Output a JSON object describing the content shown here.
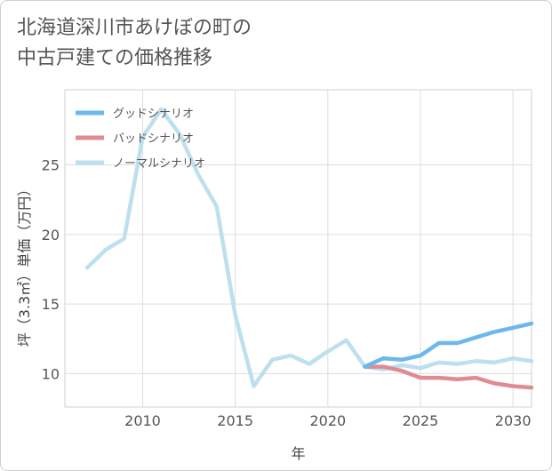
{
  "chart_data": {
    "type": "line",
    "title": "北海道深川市あけぼの町の\n中古戸建ての価格推移",
    "xlabel": "年",
    "ylabel": "坪（3.3㎡）単価（万円）",
    "xlim": [
      2005.8,
      2031
    ],
    "ylim": [
      7.6,
      30.4
    ],
    "x_ticks": [
      2010,
      2015,
      2020,
      2025,
      2030
    ],
    "y_ticks": [
      10,
      15,
      20,
      25
    ],
    "grid": true,
    "legend_position": "top-left",
    "series": [
      {
        "name": "グッドシナリオ",
        "color": "#6cb8ec",
        "x": [
          2022,
          2023,
          2024,
          2025,
          2026,
          2027,
          2028,
          2029,
          2030,
          2031
        ],
        "y": [
          10.5,
          11.1,
          11.0,
          11.3,
          12.2,
          12.2,
          12.6,
          13.0,
          13.3,
          13.6
        ]
      },
      {
        "name": "バッドシナリオ",
        "color": "#e08a94",
        "x": [
          2022,
          2023,
          2024,
          2025,
          2026,
          2027,
          2028,
          2029,
          2030,
          2031
        ],
        "y": [
          10.5,
          10.5,
          10.2,
          9.7,
          9.7,
          9.6,
          9.7,
          9.3,
          9.1,
          9.0
        ]
      },
      {
        "name": "ノーマルシナリオ",
        "color": "#bde0ee",
        "x": [
          2007,
          2008,
          2009,
          2010,
          2011,
          2012,
          2013,
          2014,
          2015,
          2016,
          2017,
          2018,
          2019,
          2020,
          2021,
          2022,
          2023,
          2024,
          2025,
          2026,
          2027,
          2028,
          2029,
          2030,
          2031
        ],
        "y": [
          17.6,
          18.9,
          19.7,
          27.0,
          29.0,
          27.2,
          24.3,
          22.0,
          14.2,
          9.1,
          11.0,
          11.3,
          10.7,
          11.6,
          12.4,
          10.5,
          10.3,
          10.6,
          10.4,
          10.8,
          10.7,
          10.9,
          10.8,
          11.1,
          10.9
        ]
      }
    ]
  }
}
